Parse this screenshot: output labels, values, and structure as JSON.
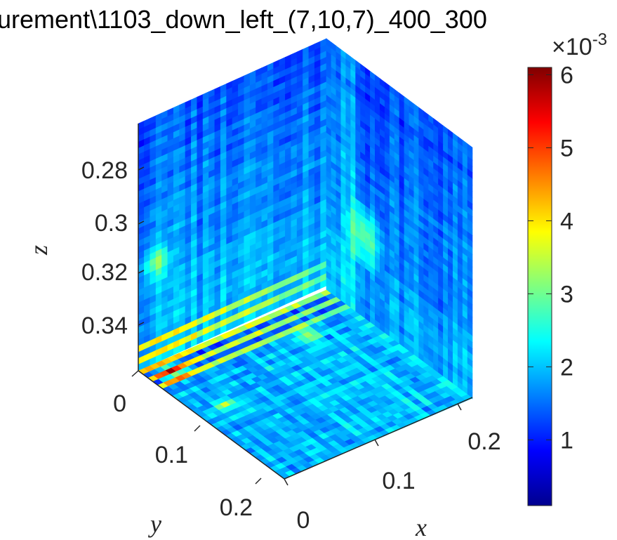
{
  "chart_data": {
    "type": "heatmap",
    "title": "urement\\1103_down_left_(7,10,7)_400_300",
    "xlabel": "x",
    "ylabel": "y",
    "zlabel": "z",
    "x_ticks": [
      "0",
      "0.1",
      "0.2"
    ],
    "y_ticks": [
      "0",
      "0.1",
      "0.2"
    ],
    "z_ticks": [
      "0.28",
      "0.3",
      "0.32",
      "0.34"
    ],
    "xlim": [
      0,
      0.25
    ],
    "ylim": [
      0,
      0.25
    ],
    "zlim": [
      0.26,
      0.36
    ],
    "z_direction": "reversed",
    "colormap": "jet",
    "colorbar": {
      "multiplier": "×10",
      "exponent": "-3",
      "ticks": [
        "1",
        "2",
        "3",
        "4",
        "5",
        "6"
      ],
      "range": [
        0.0001,
        0.0061
      ]
    },
    "slices": [
      {
        "plane": "y",
        "name": "back-left wall"
      },
      {
        "plane": "x",
        "name": "back-right wall"
      },
      {
        "plane": "z",
        "name": "floor"
      }
    ]
  }
}
